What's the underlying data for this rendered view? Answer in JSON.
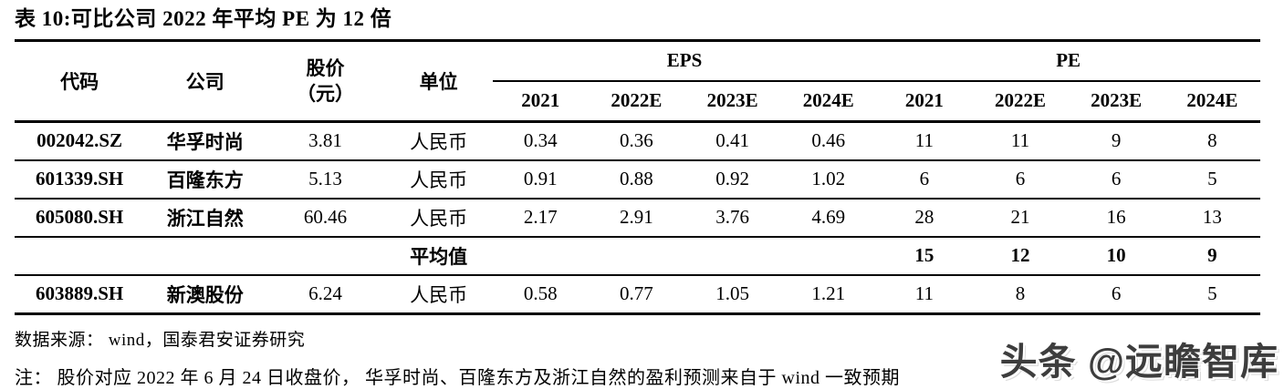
{
  "title": "表 10:可比公司 2022 年平均 PE 为 12 倍",
  "table": {
    "header": {
      "code": "代码",
      "company": "公司",
      "price_line1": "股价",
      "price_line2": "（元）",
      "unit": "单位",
      "eps_group": "EPS",
      "pe_group": "PE",
      "years": [
        "2021",
        "2022E",
        "2023E",
        "2024E"
      ]
    },
    "rows": [
      {
        "code": "002042.SZ",
        "company": "华孚时尚",
        "price": "3.81",
        "unit": "人民币",
        "eps": [
          "0.34",
          "0.36",
          "0.41",
          "0.46"
        ],
        "pe": [
          "11",
          "11",
          "9",
          "8"
        ]
      },
      {
        "code": "601339.SH",
        "company": "百隆东方",
        "price": "5.13",
        "unit": "人民币",
        "eps": [
          "0.91",
          "0.88",
          "0.92",
          "1.02"
        ],
        "pe": [
          "6",
          "6",
          "6",
          "5"
        ]
      },
      {
        "code": "605080.SH",
        "company": "浙江自然",
        "price": "60.46",
        "unit": "人民币",
        "eps": [
          "2.17",
          "2.91",
          "3.76",
          "4.69"
        ],
        "pe": [
          "28",
          "21",
          "16",
          "13"
        ]
      },
      {
        "label": "平均值",
        "pe": [
          "15",
          "12",
          "10",
          "9"
        ]
      },
      {
        "code": "603889.SH",
        "company": "新澳股份",
        "price": "6.24",
        "unit": "人民币",
        "eps": [
          "0.58",
          "0.77",
          "1.05",
          "1.21"
        ],
        "pe": [
          "11",
          "8",
          "6",
          "5"
        ]
      }
    ]
  },
  "source": "数据来源： wind，国泰君安证券研究",
  "note": "注： 股价对应 2022 年 6 月 24 日收盘价， 华孚时尚、百隆东方及浙江自然的盈利预测来自于 wind 一致预期",
  "watermark": "头条 @远瞻智库"
}
